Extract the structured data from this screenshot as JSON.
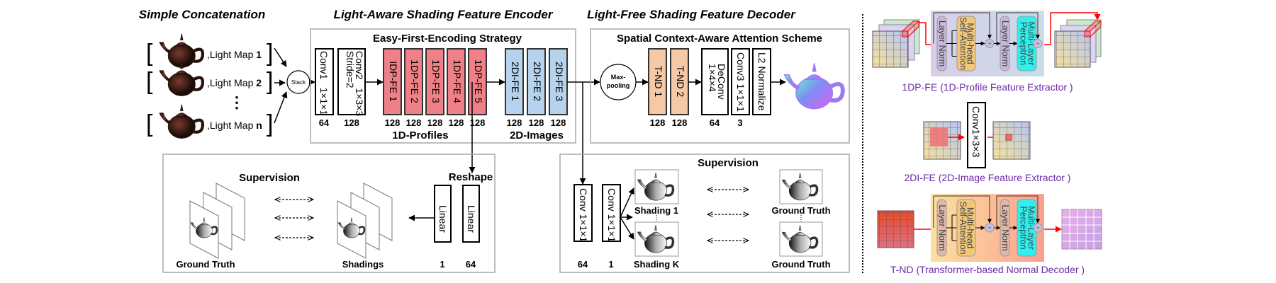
{
  "titles": {
    "concat": "Simple Concatenation",
    "encoder": "Light-Aware Shading Feature Encoder",
    "decoder": "Light-Free Shading Feature Decoder"
  },
  "inputs": [
    {
      "label": ",Light Map ",
      "num": "1"
    },
    {
      "label": ",Light Map ",
      "num": "2"
    },
    {
      "label": ",Light Map ",
      "num": "n"
    }
  ],
  "ellipsis": "⋮",
  "stack": "Stack",
  "encoder": {
    "strategy": "Easy-First-Encoding Strategy",
    "conv1": {
      "name": "Conv1",
      "kernel": "1×1×1",
      "channels": "64"
    },
    "conv2": {
      "name": "Conv2",
      "kernel": "1×3×3",
      "stride": "Stride=2",
      "channels": "128"
    },
    "dp": [
      {
        "label": "IDP-FE 1",
        "channels": "128"
      },
      {
        "label": "1DP-FE 2",
        "channels": "128"
      },
      {
        "label": "1DP-FE 3",
        "channels": "128"
      },
      {
        "label": "1DP-FE 4",
        "channels": "128"
      },
      {
        "label": "1DP-FE 5",
        "channels": "128"
      }
    ],
    "di": [
      {
        "label": "2DI-FE 1",
        "channels": "128"
      },
      {
        "label": "2DI-FE 2",
        "channels": "128"
      },
      {
        "label": "2DI-FE 3",
        "channels": "128"
      }
    ],
    "profiles_label": "1D-Profiles",
    "images_label": "2D-Images"
  },
  "decoder": {
    "scheme": "Spatial Context-Aware Attention Scheme",
    "maxpool": [
      "Max-",
      "pooling"
    ],
    "tnd": [
      {
        "label": "T-ND 1",
        "channels": "128"
      },
      {
        "label": "T-ND 2",
        "channels": "128"
      }
    ],
    "deconv": {
      "name": "DeConv",
      "kernel": "1×4×4",
      "channels": "64"
    },
    "conv3": {
      "label": "Conv3 1×1×1",
      "channels": "3"
    },
    "l2": "L2 Normalize"
  },
  "sup_left": {
    "title": "Supervision",
    "reshape": "Reshape",
    "linear": [
      {
        "label": "Linear",
        "channels": "1"
      },
      {
        "label": "Linear",
        "channels": "64"
      }
    ],
    "gt": "Ground Truth",
    "shadings": "Shadings"
  },
  "sup_right": {
    "title": "Supervision",
    "conv": [
      {
        "label": "Conv 1×1×1",
        "channels": "64"
      },
      {
        "label": "Conv 1×1×1",
        "channels": "1"
      }
    ],
    "shading1": "Shading 1",
    "shadingK": "Shading K",
    "gt1": "Ground Truth",
    "gt2": "Ground Truth"
  },
  "legend": {
    "dpfe": {
      "caption": "1DP-FE (1D-Profile Feature Extractor )"
    },
    "dife": {
      "caption": "2DI-FE (2D-Image Feature Extractor )",
      "conv": "Conv1×3×3"
    },
    "tnd": {
      "caption": "T-ND (Transformer-based Normal Decoder )"
    },
    "layer_norm": "Layer Norm",
    "mhsa": [
      "Multi-head",
      "Self-Attention"
    ],
    "mlp": [
      "Multi-Layer",
      "Perceptron"
    ]
  },
  "colors": {
    "dp": "#f08088",
    "di": "#b5d3ec",
    "tnd": "#f5c9a8",
    "caption": "#6a2aa8",
    "arrow_red": "#ff0000",
    "mlp": "#2ff0f0",
    "mhsa": "#f3c77a",
    "ln": "#c8b8dc"
  }
}
